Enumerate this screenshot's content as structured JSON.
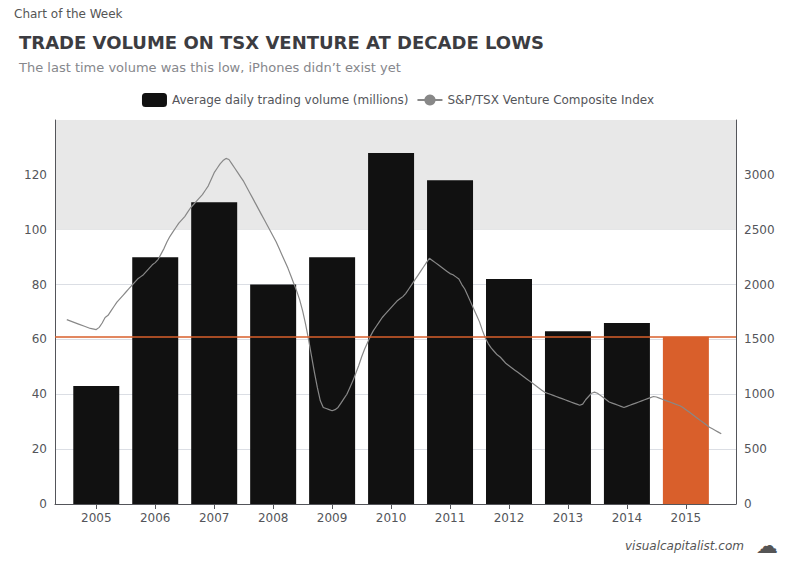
{
  "chart_data": {
    "type": "bar",
    "title": "TRADE VOLUME ON TSX VENTURE AT DECADE LOWS",
    "subtitle": "The last time volume was this low, iPhones didn’t exist yet",
    "annotations": [
      "Chart of the Week",
      "visualcapitalist.com",
      "☁"
    ],
    "legend": "top",
    "grid": true,
    "xlim": [
      2004.3,
      2015.85
    ],
    "xticks": [
      2005,
      2006,
      2007,
      2008,
      2009,
      2010,
      2011,
      2012,
      2013,
      2014,
      2015
    ],
    "ylim": [
      0,
      140
    ],
    "yticks": [
      0,
      20,
      40,
      60,
      80,
      100,
      120
    ],
    "y2lim": [
      0,
      3500
    ],
    "y2ticks": [
      0,
      500,
      1000,
      1500,
      2000,
      2500,
      3000
    ],
    "shaded_band": {
      "ymin": 100,
      "ymax": 140,
      "color": "#e8e8e8"
    },
    "reference_lines": [
      {
        "y": 61,
        "color": "#d95f2b"
      }
    ],
    "series": [
      {
        "name": "Average daily trading volume (millions)",
        "type": "bar",
        "x": [
          2005,
          2006,
          2007,
          2008,
          2009,
          2010,
          2011,
          2012,
          2013,
          2014,
          2015
        ],
        "values": [
          43,
          90,
          110,
          80,
          90,
          128,
          118,
          82,
          63,
          66,
          61
        ],
        "colors": [
          "#111111",
          "#111111",
          "#111111",
          "#111111",
          "#111111",
          "#111111",
          "#111111",
          "#111111",
          "#111111",
          "#111111",
          "#d95f2b"
        ]
      },
      {
        "name": "S&P/TSX Venture Composite Index",
        "type": "line",
        "axis": "y2",
        "color": "#888888",
        "x": [
          2004.5,
          2004.6,
          2004.7,
          2004.8,
          2004.9,
          2005.0,
          2005.05,
          2005.1,
          2005.15,
          2005.2,
          2005.25,
          2005.3,
          2005.35,
          2005.4,
          2005.45,
          2005.5,
          2005.55,
          2005.6,
          2005.65,
          2005.7,
          2005.75,
          2005.8,
          2005.85,
          2005.9,
          2005.95,
          2006.0,
          2006.05,
          2006.1,
          2006.15,
          2006.2,
          2006.25,
          2006.3,
          2006.35,
          2006.4,
          2006.45,
          2006.5,
          2006.55,
          2006.6,
          2006.65,
          2006.7,
          2006.75,
          2006.8,
          2006.85,
          2006.9,
          2006.95,
          2007.0,
          2007.05,
          2007.1,
          2007.15,
          2007.2,
          2007.25,
          2007.3,
          2007.35,
          2007.4,
          2007.45,
          2007.5,
          2007.55,
          2007.6,
          2007.65,
          2007.7,
          2007.75,
          2007.8,
          2007.85,
          2007.9,
          2007.95,
          2008.0,
          2008.05,
          2008.1,
          2008.15,
          2008.2,
          2008.25,
          2008.3,
          2008.35,
          2008.4,
          2008.45,
          2008.5,
          2008.55,
          2008.6,
          2008.65,
          2008.7,
          2008.75,
          2008.8,
          2008.85,
          2008.9,
          2008.95,
          2009.0,
          2009.05,
          2009.1,
          2009.15,
          2009.2,
          2009.25,
          2009.3,
          2009.35,
          2009.4,
          2009.45,
          2009.5,
          2009.55,
          2009.6,
          2009.65,
          2009.7,
          2009.75,
          2009.8,
          2009.85,
          2009.9,
          2009.95,
          2010.0,
          2010.05,
          2010.1,
          2010.15,
          2010.2,
          2010.25,
          2010.3,
          2010.35,
          2010.4,
          2010.45,
          2010.5,
          2010.55,
          2010.6,
          2010.65,
          2010.7,
          2010.75,
          2010.8,
          2010.85,
          2010.9,
          2010.95,
          2011.0,
          2011.05,
          2011.1,
          2011.15,
          2011.2,
          2011.25,
          2011.3,
          2011.35,
          2011.4,
          2011.45,
          2011.5,
          2011.55,
          2011.6,
          2011.65,
          2011.7,
          2011.75,
          2011.8,
          2011.85,
          2011.9,
          2011.95,
          2012.0,
          2012.05,
          2012.1,
          2012.15,
          2012.2,
          2012.25,
          2012.3,
          2012.35,
          2012.4,
          2012.45,
          2012.5,
          2012.55,
          2012.6,
          2012.65,
          2012.7,
          2012.75,
          2012.8,
          2012.85,
          2012.9,
          2012.95,
          2013.0,
          2013.05,
          2013.1,
          2013.15,
          2013.2,
          2013.25,
          2013.3,
          2013.35,
          2013.4,
          2013.45,
          2013.5,
          2013.55,
          2013.6,
          2013.65,
          2013.7,
          2013.75,
          2013.8,
          2013.85,
          2013.9,
          2013.95,
          2014.0,
          2014.05,
          2014.1,
          2014.15,
          2014.2,
          2014.25,
          2014.3,
          2014.35,
          2014.4,
          2014.45,
          2014.5,
          2014.55,
          2014.6,
          2014.65,
          2014.7,
          2014.75,
          2014.8,
          2014.85,
          2014.9,
          2014.95,
          2015.0,
          2015.05,
          2015.1,
          2015.15,
          2015.2,
          2015.25,
          2015.3,
          2015.35,
          2015.4,
          2015.45,
          2015.5,
          2015.55,
          2015.6
        ],
        "values": [
          1680,
          1660,
          1640,
          1620,
          1600,
          1590,
          1610,
          1650,
          1700,
          1720,
          1760,
          1800,
          1840,
          1870,
          1900,
          1930,
          1960,
          1990,
          2020,
          2050,
          2070,
          2090,
          2120,
          2150,
          2180,
          2200,
          2230,
          2280,
          2330,
          2390,
          2440,
          2480,
          2520,
          2560,
          2590,
          2620,
          2660,
          2700,
          2730,
          2760,
          2790,
          2820,
          2860,
          2900,
          2960,
          3020,
          3060,
          3100,
          3130,
          3150,
          3140,
          3100,
          3060,
          3020,
          2980,
          2940,
          2890,
          2840,
          2790,
          2740,
          2690,
          2640,
          2590,
          2540,
          2490,
          2440,
          2390,
          2330,
          2270,
          2210,
          2150,
          2080,
          2010,
          1940,
          1860,
          1760,
          1640,
          1500,
          1350,
          1200,
          1060,
          940,
          880,
          870,
          860,
          850,
          860,
          880,
          920,
          960,
          1000,
          1060,
          1120,
          1190,
          1260,
          1340,
          1410,
          1470,
          1530,
          1580,
          1620,
          1660,
          1700,
          1730,
          1760,
          1790,
          1820,
          1850,
          1870,
          1890,
          1920,
          1960,
          2000,
          2040,
          2080,
          2120,
          2160,
          2200,
          2240,
          2220,
          2200,
          2180,
          2160,
          2140,
          2120,
          2100,
          2090,
          2070,
          2050,
          2000,
          1960,
          1900,
          1840,
          1780,
          1720,
          1660,
          1580,
          1510,
          1460,
          1420,
          1390,
          1360,
          1340,
          1310,
          1280,
          1260,
          1240,
          1220,
          1200,
          1180,
          1160,
          1140,
          1120,
          1100,
          1080,
          1060,
          1040,
          1020,
          1010,
          1000,
          990,
          980,
          970,
          960,
          950,
          940,
          930,
          920,
          910,
          900,
          910,
          950,
          980,
          1010,
          1020,
          1010,
          990,
          970,
          950,
          930,
          920,
          910,
          900,
          890,
          880,
          890,
          900,
          910,
          920,
          930,
          940,
          950,
          960,
          970,
          980,
          975,
          965,
          955,
          945,
          935,
          925,
          915,
          905,
          895,
          880,
          860,
          840,
          820,
          800,
          780,
          760,
          740,
          720,
          700,
          685,
          670,
          655,
          640
        ]
      }
    ]
  }
}
